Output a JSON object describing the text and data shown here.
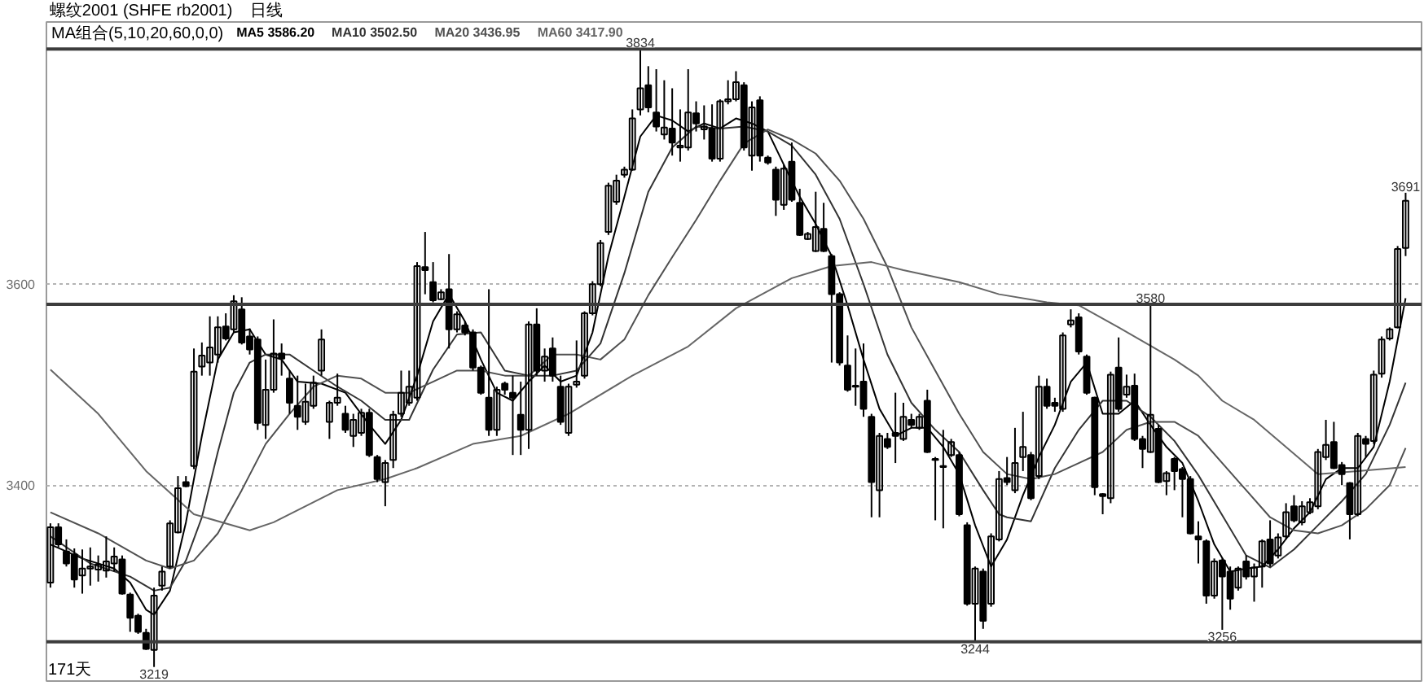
{
  "chart_data": {
    "type": "candlestick",
    "title": "螺纹2001 (SHFE rb2001)",
    "subtitle": "日线",
    "legend_title": "MA组合(5,10,20,60,0,0)",
    "legend": "top left",
    "tick_labels": "y",
    "grid": "y",
    "ylim": [
      3205,
      3861
    ],
    "yticks": [
      3400,
      3600
    ],
    "categories": [
      null,
      null,
      null,
      null,
      null,
      null,
      null,
      null,
      null,
      null,
      null,
      null,
      null,
      null,
      null,
      null,
      null,
      null,
      null,
      null,
      null,
      null,
      null,
      null,
      null,
      null,
      null,
      null,
      null,
      null,
      null,
      null,
      null,
      null,
      null,
      null,
      null,
      null,
      null,
      null,
      null,
      null,
      null,
      null,
      null,
      null,
      null,
      null,
      null,
      null,
      null,
      null,
      null,
      null,
      null,
      null,
      null,
      null,
      null,
      null,
      null,
      null,
      null,
      null,
      null,
      null,
      null,
      null,
      null,
      null,
      null,
      null,
      null,
      null,
      null,
      null,
      null,
      null,
      null,
      null,
      null,
      null,
      null,
      null,
      null,
      null,
      null,
      null,
      null,
      null,
      null,
      null,
      null,
      null,
      null,
      null,
      null,
      null,
      null,
      null,
      null,
      null,
      null,
      null,
      null,
      null,
      null,
      null,
      null,
      null,
      null,
      null,
      null,
      null,
      null,
      null,
      null,
      null,
      null,
      null,
      null,
      null,
      null,
      null,
      null,
      null,
      null,
      null,
      null,
      null,
      null,
      null,
      null,
      null,
      null,
      null,
      null,
      null,
      null,
      null,
      null,
      null,
      null,
      null,
      null,
      null,
      null,
      null,
      null,
      null,
      null,
      null,
      null,
      null,
      null,
      null,
      null,
      null,
      null,
      null,
      null,
      null,
      null,
      null,
      null,
      null,
      null,
      null,
      null,
      null,
      null
    ],
    "color": "#000000",
    "ohlc": [
      [
        3303,
        3362,
        3298,
        3358
      ],
      [
        3358,
        3362,
        3338,
        3341
      ],
      [
        3334,
        3346,
        3319,
        3322
      ],
      [
        3331,
        3337,
        3298,
        3306
      ],
      [
        3310,
        3336,
        3292,
        3317
      ],
      [
        3317,
        3338,
        3300,
        3319
      ],
      [
        3316,
        3330,
        3304,
        3321
      ],
      [
        3315,
        3349,
        3308,
        3324
      ],
      [
        3322,
        3338,
        3314,
        3329
      ],
      [
        3326,
        3330,
        3291,
        3292
      ],
      [
        3291,
        3293,
        3254,
        3268
      ],
      [
        3270,
        3272,
        3252,
        3254
      ],
      [
        3253,
        3257,
        3236,
        3237
      ],
      [
        3236,
        3298,
        3219,
        3290
      ],
      [
        3300,
        3319,
        3295,
        3314
      ],
      [
        3319,
        3365,
        3317,
        3362
      ],
      [
        3353,
        3409,
        3352,
        3397
      ],
      [
        3403,
        3409,
        3398,
        3399
      ],
      [
        3419,
        3536,
        3416,
        3513
      ],
      [
        3518,
        3542,
        3509,
        3529
      ],
      [
        3522,
        3568,
        3509,
        3537
      ],
      [
        3530,
        3568,
        3522,
        3557
      ],
      [
        3558,
        3571,
        3544,
        3546
      ],
      [
        3555,
        3589,
        3552,
        3583
      ],
      [
        3575,
        3587,
        3540,
        3542
      ],
      [
        3548,
        3556,
        3530,
        3535
      ],
      [
        3545,
        3548,
        3455,
        3462
      ],
      [
        3460,
        3525,
        3446,
        3495
      ],
      [
        3495,
        3565,
        3492,
        3531
      ],
      [
        3531,
        3541,
        3509,
        3526
      ],
      [
        3506,
        3514,
        3471,
        3482
      ],
      [
        3479,
        3509,
        3455,
        3468
      ],
      [
        3463,
        3501,
        3460,
        3483
      ],
      [
        3479,
        3509,
        3476,
        3502
      ],
      [
        3514,
        3555,
        3509,
        3545
      ],
      [
        3463,
        3484,
        3446,
        3482
      ],
      [
        3482,
        3511,
        3479,
        3487
      ],
      [
        3471,
        3479,
        3452,
        3455
      ],
      [
        3449,
        3471,
        3438,
        3465
      ],
      [
        3452,
        3476,
        3449,
        3472
      ],
      [
        3472,
        3476,
        3428,
        3430
      ],
      [
        3428,
        3430,
        3403,
        3406
      ],
      [
        3403,
        3425,
        3379,
        3422
      ],
      [
        3425,
        3474,
        3417,
        3470
      ],
      [
        3471,
        3514,
        3468,
        3492
      ],
      [
        3482,
        3514,
        3479,
        3498
      ],
      [
        3487,
        3622,
        3484,
        3618
      ],
      [
        3617,
        3652,
        3590,
        3614
      ],
      [
        3602,
        3622,
        3582,
        3584
      ],
      [
        3585,
        3595,
        3584,
        3592
      ],
      [
        3595,
        3630,
        3536,
        3555
      ],
      [
        3555,
        3573,
        3552,
        3570
      ],
      [
        3559,
        3563,
        3549,
        3552
      ],
      [
        3552,
        3555,
        3514,
        3517
      ],
      [
        3517,
        3519,
        3490,
        3492
      ],
      [
        3487,
        3595,
        3449,
        3455
      ],
      [
        3455,
        3498,
        3449,
        3495
      ],
      [
        3501,
        3503,
        3490,
        3495
      ],
      [
        3492,
        3509,
        3430,
        3487
      ],
      [
        3470,
        3503,
        3430,
        3455
      ],
      [
        3455,
        3563,
        3436,
        3560
      ],
      [
        3560,
        3576,
        3509,
        3514
      ],
      [
        3514,
        3536,
        3503,
        3528
      ],
      [
        3536,
        3547,
        3503,
        3509
      ],
      [
        3498,
        3509,
        3460,
        3463
      ],
      [
        3452,
        3501,
        3449,
        3498
      ],
      [
        3500,
        3544,
        3497,
        3503
      ],
      [
        3509,
        3573,
        3506,
        3571
      ],
      [
        3571,
        3603,
        3569,
        3600
      ],
      [
        3600,
        3644,
        3598,
        3641
      ],
      [
        3652,
        3701,
        3649,
        3698
      ],
      [
        3682,
        3709,
        3679,
        3703
      ],
      [
        3709,
        3717,
        3706,
        3714
      ],
      [
        3714,
        3774,
        3713,
        3765
      ],
      [
        3774,
        3834,
        3768,
        3795
      ],
      [
        3798,
        3817,
        3771,
        3776
      ],
      [
        3771,
        3814,
        3752,
        3757
      ],
      [
        3749,
        3803,
        3744,
        3756
      ],
      [
        3755,
        3795,
        3728,
        3741
      ],
      [
        3736,
        3774,
        3722,
        3738
      ],
      [
        3736,
        3814,
        3733,
        3771
      ],
      [
        3770,
        3782,
        3752,
        3760
      ],
      [
        3754,
        3778,
        3744,
        3757
      ],
      [
        3755,
        3779,
        3722,
        3725
      ],
      [
        3725,
        3784,
        3722,
        3782
      ],
      [
        3782,
        3803,
        3779,
        3784
      ],
      [
        3784,
        3812,
        3782,
        3801
      ],
      [
        3798,
        3801,
        3733,
        3736
      ],
      [
        3728,
        3782,
        3713,
        3776
      ],
      [
        3783,
        3787,
        3722,
        3728
      ],
      [
        3726,
        3728,
        3719,
        3721
      ],
      [
        3714,
        3717,
        3668,
        3684
      ],
      [
        3679,
        3719,
        3674,
        3715
      ],
      [
        3722,
        3741,
        3682,
        3684
      ],
      [
        3681,
        3695,
        3648,
        3649
      ],
      [
        3645,
        3652,
        3644,
        3650
      ],
      [
        3633,
        3692,
        3632,
        3657
      ],
      [
        3655,
        3681,
        3632,
        3633
      ],
      [
        3628,
        3630,
        3522,
        3590
      ],
      [
        3590,
        3592,
        3519,
        3522
      ],
      [
        3519,
        3549,
        3493,
        3495
      ],
      [
        3499,
        3536,
        3479,
        3498
      ],
      [
        3503,
        3541,
        3468,
        3476
      ],
      [
        3468,
        3471,
        3368,
        3403
      ],
      [
        3395,
        3452,
        3368,
        3449
      ],
      [
        3446,
        3452,
        3436,
        3438
      ],
      [
        3452,
        3492,
        3422,
        3449
      ],
      [
        3446,
        3482,
        3444,
        3468
      ],
      [
        3465,
        3471,
        3457,
        3460
      ],
      [
        3457,
        3471,
        3455,
        3468
      ],
      [
        3484,
        3495,
        3432,
        3433
      ],
      [
        3426,
        3428,
        3365,
        3425
      ],
      [
        3419,
        3455,
        3357,
        3418
      ],
      [
        3430,
        3446,
        3428,
        3443
      ],
      [
        3430,
        3433,
        3369,
        3371
      ],
      [
        3360,
        3363,
        3280,
        3282
      ],
      [
        3282,
        3319,
        3244,
        3317
      ],
      [
        3314,
        3317,
        3257,
        3265
      ],
      [
        3282,
        3352,
        3279,
        3349
      ],
      [
        3346,
        3414,
        3344,
        3406
      ],
      [
        3407,
        3428,
        3400,
        3403
      ],
      [
        3395,
        3457,
        3392,
        3422
      ],
      [
        3428,
        3473,
        3414,
        3438
      ],
      [
        3430,
        3433,
        3385,
        3387
      ],
      [
        3409,
        3509,
        3406,
        3498
      ],
      [
        3498,
        3506,
        3476,
        3479
      ],
      [
        3482,
        3487,
        3473,
        3479
      ],
      [
        3476,
        3552,
        3473,
        3549
      ],
      [
        3560,
        3575,
        3557,
        3564
      ],
      [
        3567,
        3571,
        3530,
        3533
      ],
      [
        3528,
        3530,
        3490,
        3492
      ],
      [
        3487,
        3488,
        3390,
        3398
      ],
      [
        3391,
        3392,
        3371,
        3389
      ],
      [
        3387,
        3513,
        3382,
        3510
      ],
      [
        3517,
        3547,
        3473,
        3476
      ],
      [
        3490,
        3510,
        3487,
        3498
      ],
      [
        3499,
        3511,
        3444,
        3446
      ],
      [
        3446,
        3449,
        3417,
        3436
      ],
      [
        3433,
        3580,
        3432,
        3470
      ],
      [
        3456,
        3460,
        3402,
        3403
      ],
      [
        3404,
        3414,
        3390,
        3412
      ],
      [
        3426,
        3428,
        3395,
        3414
      ],
      [
        3416,
        3418,
        3368,
        3406
      ],
      [
        3406,
        3409,
        3351,
        3352
      ],
      [
        3349,
        3364,
        3322,
        3346
      ],
      [
        3344,
        3346,
        3282,
        3290
      ],
      [
        3290,
        3327,
        3287,
        3324
      ],
      [
        3325,
        3327,
        3256,
        3309
      ],
      [
        3314,
        3319,
        3276,
        3287
      ],
      [
        3298,
        3319,
        3295,
        3317
      ],
      [
        3324,
        3330,
        3306,
        3309
      ],
      [
        3309,
        3322,
        3284,
        3318
      ],
      [
        3319,
        3346,
        3298,
        3344
      ],
      [
        3346,
        3365,
        3319,
        3322
      ],
      [
        3330,
        3352,
        3327,
        3348
      ],
      [
        3349,
        3382,
        3346,
        3373
      ],
      [
        3379,
        3390,
        3363,
        3365
      ],
      [
        3363,
        3384,
        3360,
        3379
      ],
      [
        3373,
        3387,
        3371,
        3383
      ],
      [
        3379,
        3436,
        3376,
        3433
      ],
      [
        3428,
        3465,
        3425,
        3440
      ],
      [
        3443,
        3463,
        3416,
        3417
      ],
      [
        3420,
        3423,
        3400,
        3411
      ],
      [
        3402,
        3403,
        3346,
        3371
      ],
      [
        3371,
        3452,
        3369,
        3449
      ],
      [
        3446,
        3449,
        3428,
        3441
      ],
      [
        3444,
        3514,
        3441,
        3510
      ],
      [
        3511,
        3548,
        3507,
        3545
      ],
      [
        3546,
        3557,
        3544,
        3555
      ],
      [
        3557,
        3638,
        3556,
        3635
      ],
      [
        3636,
        3691,
        3628,
        3683
      ]
    ],
    "series": [
      {
        "name": "MA5 3586.20",
        "type": "line",
        "color": "#000000",
        "values": [
          3341,
          null,
          null,
          null,
          3327,
          null,
          null,
          null,
          3317,
          null,
          3303,
          null,
          3276,
          3271,
          null,
          3295,
          null,
          3363,
          null,
          3449,
          null,
          3525,
          null,
          3552,
          null,
          3555,
          null,
          3530,
          null,
          3525,
          null,
          3503,
          null,
          null,
          3501,
          null,
          null,
          3492,
          null,
          null,
          3460,
          null,
          3441,
          null,
          3465,
          null,
          3509,
          null,
          3563,
          null,
          3590,
          null,
          3563,
          null,
          3525,
          null,
          3492,
          null,
          3484,
          null,
          3503,
          null,
          3519,
          null,
          3503,
          null,
          3509,
          null,
          3552,
          null,
          3628,
          null,
          3687,
          null,
          3747,
          null,
          3768,
          null,
          3763,
          null,
          3752,
          null,
          3760,
          null,
          3755,
          null,
          3765,
          null,
          3760,
          null,
          3752,
          null,
          3719,
          null,
          3687,
          null,
          3660,
          null,
          3628,
          null,
          3579,
          null,
          3525,
          null,
          3476,
          null,
          3449,
          null,
          3457,
          null,
          3457,
          null,
          3438,
          null,
          3411,
          null,
          3360,
          null,
          3319,
          null,
          3346,
          null,
          3390,
          null,
          3428,
          null,
          3460,
          null,
          3503,
          null,
          3522,
          null,
          3471,
          null,
          3471,
          null,
          3484,
          null,
          3460,
          null,
          3438,
          null,
          3422,
          null,
          3384,
          null,
          3341,
          null,
          3314,
          null,
          3317,
          null,
          3319,
          null,
          3336,
          null,
          3357,
          null,
          3373,
          null,
          3406,
          null,
          3417,
          null,
          3417,
          null,
          3438,
          null,
          3503,
          null,
          3586
        ]
      },
      {
        "name": "MA10 3502.50",
        "type": "line",
        "color": "#333333",
        "values": [
          3349,
          null,
          null,
          null,
          null,
          3322,
          null,
          null,
          null,
          null,
          3309,
          null,
          null,
          3295,
          null,
          3298,
          null,
          3325,
          null,
          3368,
          null,
          3433,
          null,
          3492,
          null,
          3522,
          null,
          3530,
          null,
          null,
          3530,
          null,
          null,
          3514,
          null,
          null,
          3498,
          null,
          null,
          3484,
          null,
          null,
          3465,
          null,
          null,
          3465,
          null,
          null,
          3515,
          null,
          null,
          3550,
          null,
          null,
          3552,
          null,
          null,
          3514,
          null,
          null,
          3509,
          null,
          null,
          3509,
          null,
          null,
          3514,
          null,
          null,
          3541,
          null,
          null,
          3611,
          null,
          null,
          3692,
          null,
          null,
          3736,
          null,
          null,
          3757,
          null,
          null,
          3755,
          null,
          null,
          3757,
          null,
          null,
          3752,
          null,
          null,
          3738,
          null,
          null,
          3709,
          null,
          null,
          3665,
          null,
          null,
          3600,
          null,
          null,
          3530,
          null,
          null,
          3482,
          null,
          null,
          3455,
          null,
          null,
          3433,
          null,
          null,
          3395,
          null,
          3371,
          3368,
          null,
          null,
          3364,
          null,
          null,
          3417,
          null,
          null,
          3455,
          null,
          null,
          3484,
          null,
          null,
          3484,
          null,
          null,
          3468,
          null,
          null,
          3444,
          null,
          null,
          3410,
          null,
          null,
          3370,
          null,
          null,
          3330,
          null,
          null,
          3318,
          null,
          null,
          3336,
          null,
          null,
          3360,
          null,
          null,
          3384,
          null,
          null,
          3411,
          null,
          null,
          3460,
          null,
          3502
        ]
      },
      {
        "name": "MA20 3436.95",
        "type": "line",
        "color": "#505050",
        "values": [
          3373,
          null,
          null,
          null,
          null,
          null,
          3352,
          null,
          null,
          null,
          null,
          null,
          3325,
          null,
          null,
          3317,
          null,
          null,
          3325,
          null,
          null,
          3352,
          null,
          null,
          3395,
          null,
          null,
          3441,
          null,
          null,
          3471,
          null,
          null,
          3498,
          null,
          null,
          3509,
          null,
          null,
          3506,
          null,
          null,
          3492,
          null,
          null,
          3492,
          null,
          null,
          3503,
          null,
          null,
          3514,
          null,
          null,
          3514,
          null,
          null,
          3509,
          null,
          null,
          3509,
          null,
          null,
          3530,
          null,
          null,
          3530,
          null,
          null,
          3525,
          null,
          null,
          3545,
          null,
          null,
          3589,
          null,
          null,
          3627,
          null,
          null,
          3664,
          null,
          null,
          3703,
          null,
          null,
          3740,
          null,
          null,
          3754,
          null,
          null,
          3744,
          null,
          null,
          3730,
          null,
          null,
          3703,
          null,
          null,
          3665,
          null,
          null,
          3617,
          null,
          null,
          3557,
          null,
          null,
          3514,
          null,
          null,
          3471,
          null,
          null,
          3433,
          null,
          null,
          3411,
          null,
          null,
          3406,
          null,
          null,
          3411,
          null,
          null,
          3422,
          null,
          null,
          3433,
          null,
          null,
          3455,
          null,
          null,
          3463,
          null,
          null,
          3463,
          null,
          null,
          3449,
          null,
          null,
          3422,
          null,
          null,
          3395,
          null,
          null,
          3368,
          null,
          null,
          3355,
          null,
          null,
          3352,
          null,
          null,
          3360,
          null,
          null,
          3376,
          null,
          null,
          3400,
          null,
          3437
        ]
      },
      {
        "name": "MA60 3417.90",
        "type": "line",
        "color": "#666666",
        "values": [
          3515,
          null,
          null,
          null,
          null,
          null,
          3471,
          null,
          null,
          null,
          null,
          null,
          3414,
          null,
          null,
          null,
          null,
          null,
          3371,
          null,
          null,
          null,
          null,
          null,
          null,
          3355,
          null,
          null,
          3363,
          null,
          null,
          null,
          null,
          null,
          null,
          null,
          3395,
          null,
          null,
          null,
          null,
          null,
          3406,
          null,
          null,
          null,
          3417,
          null,
          null,
          null,
          null,
          null,
          null,
          3441,
          null,
          null,
          null,
          null,
          null,
          3449,
          null,
          null,
          null,
          null,
          null,
          3471,
          null,
          null,
          null,
          null,
          null,
          null,
          null,
          3509,
          null,
          null,
          null,
          null,
          null,
          null,
          3538,
          null,
          null,
          null,
          null,
          null,
          3576,
          null,
          null,
          null,
          null,
          null,
          null,
          3606,
          null,
          null,
          null,
          null,
          3618,
          null,
          null,
          null,
          null,
          3622,
          null,
          null,
          null,
          3614,
          null,
          null,
          null,
          null,
          null,
          null,
          3602,
          null,
          null,
          null,
          null,
          3590,
          null,
          null,
          null,
          null,
          null,
          3582,
          null,
          null,
          null,
          3579,
          null,
          null,
          null,
          null,
          3557,
          null,
          null,
          null,
          null,
          null,
          null,
          3525,
          null,
          null,
          3509,
          null,
          null,
          3484,
          null,
          null,
          null,
          3465,
          null,
          null,
          null,
          null,
          null,
          null,
          null,
          3411,
          null,
          null,
          null,
          null,
          3414,
          null,
          null,
          null,
          null,
          null,
          3418
        ]
      }
    ],
    "ref_lines": [
      {
        "axis": "y",
        "value": 3834,
        "color": "#3c3c3c"
      },
      {
        "axis": "y",
        "value": 3580,
        "color": "#3c3c3c"
      },
      {
        "axis": "y",
        "value": 3244,
        "color": "#3c3c3c"
      }
    ],
    "annotations": [
      {
        "text": "3834",
        "y": 3834
      },
      {
        "text": "3580",
        "y": 3580
      },
      {
        "text": "3691",
        "y": 3691
      },
      {
        "text": "3219",
        "y": 3219
      },
      {
        "text": "3244",
        "y": 3244
      },
      {
        "text": "3256",
        "y": 3256
      },
      "171天"
    ]
  }
}
